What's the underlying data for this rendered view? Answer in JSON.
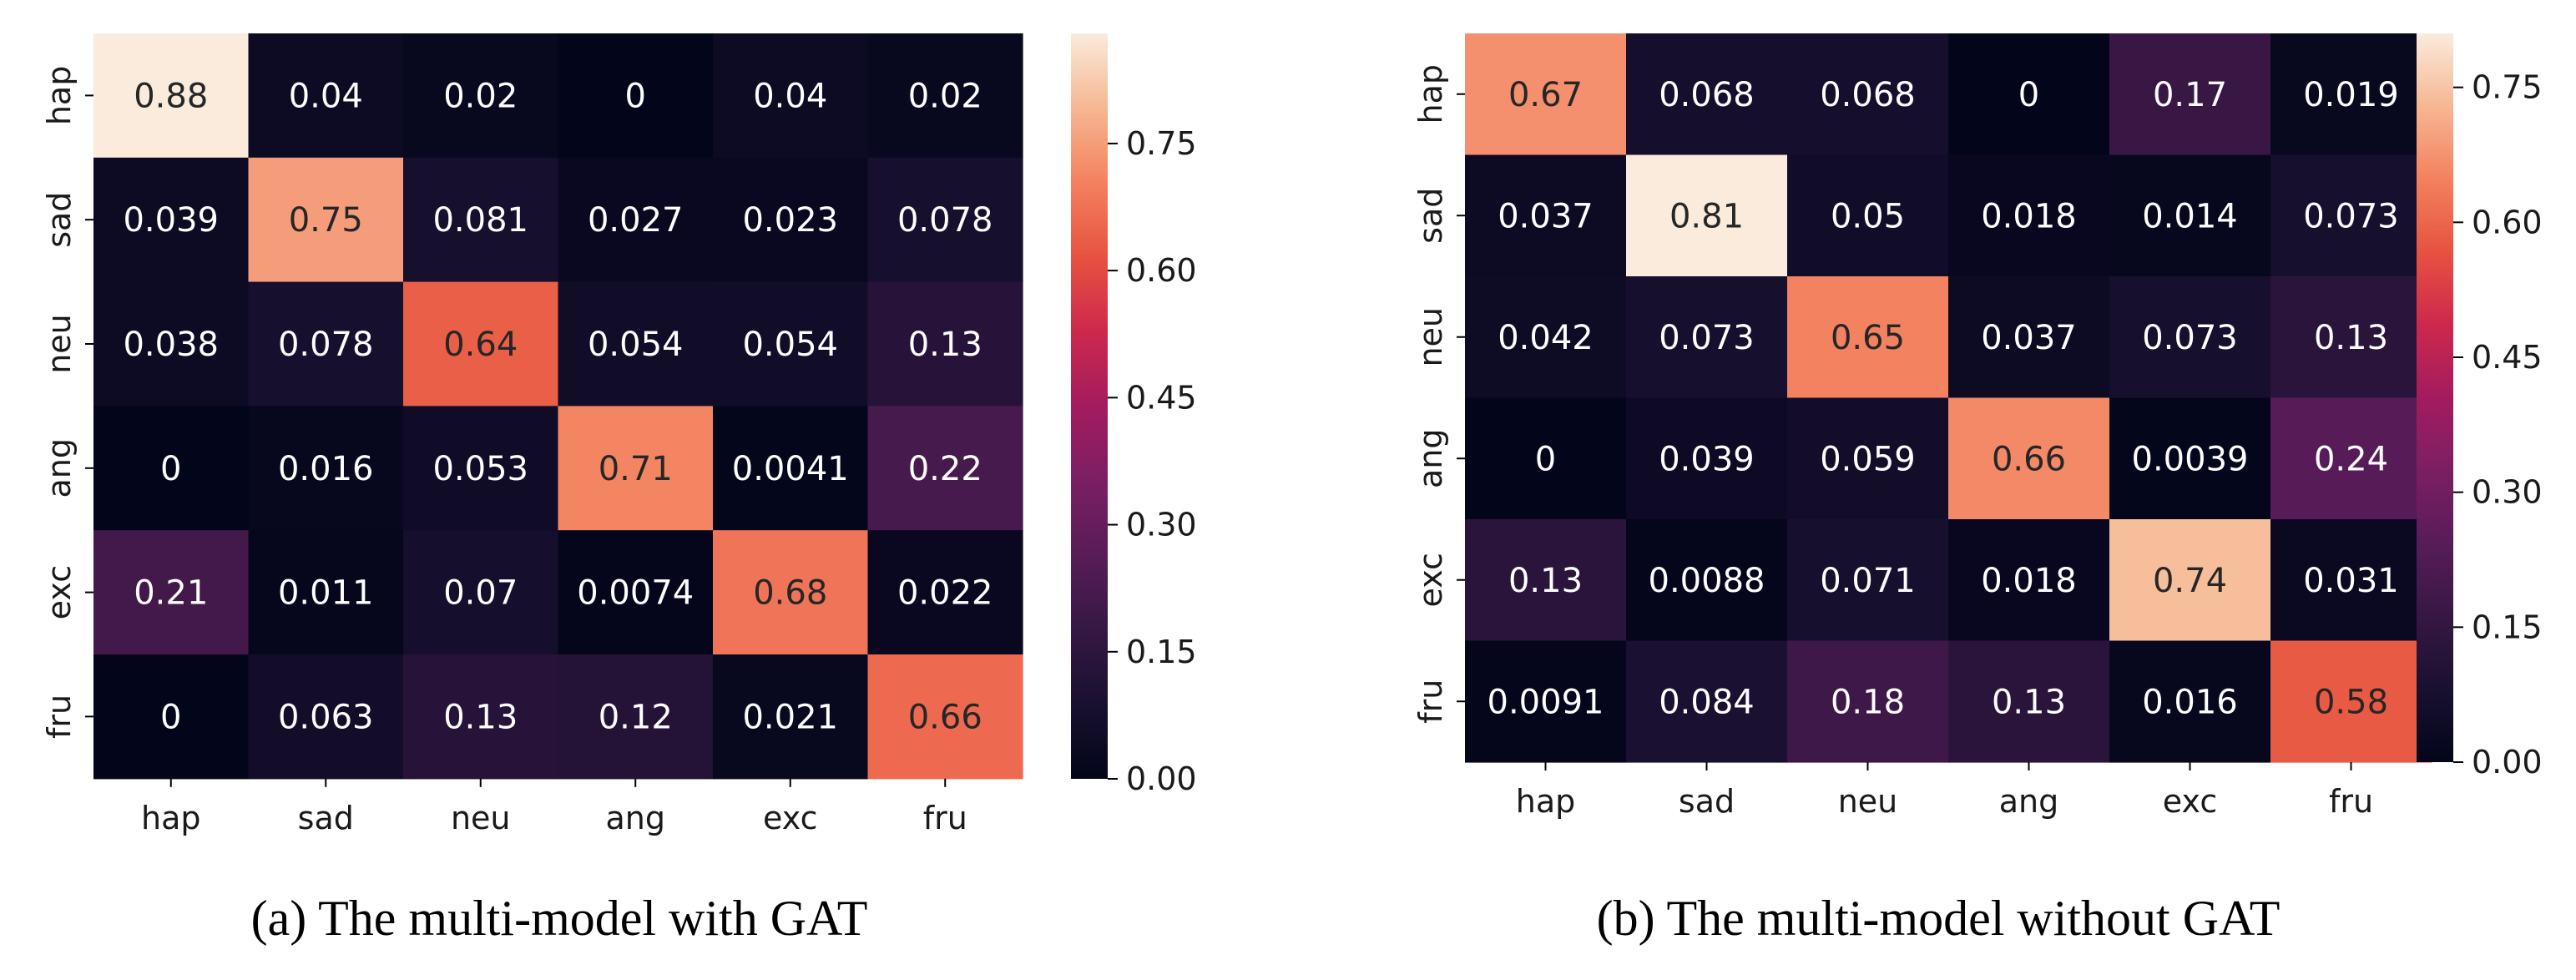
{
  "chart_data": [
    {
      "type": "heatmap",
      "title": "",
      "caption": "(a) The multi-model with GAT",
      "xlabel": "",
      "ylabel": "",
      "x_categories": [
        "hap",
        "sad",
        "neu",
        "ang",
        "exc",
        "fru"
      ],
      "y_categories": [
        "hap",
        "sad",
        "neu",
        "ang",
        "exc",
        "fru"
      ],
      "values": [
        [
          0.88,
          0.04,
          0.02,
          0,
          0.04,
          0.02
        ],
        [
          0.039,
          0.75,
          0.081,
          0.027,
          0.023,
          0.078
        ],
        [
          0.038,
          0.078,
          0.64,
          0.054,
          0.054,
          0.13
        ],
        [
          0,
          0.016,
          0.053,
          0.71,
          0.0041,
          0.22
        ],
        [
          0.21,
          0.011,
          0.07,
          0.0074,
          0.68,
          0.022
        ],
        [
          0,
          0.063,
          0.13,
          0.12,
          0.021,
          0.66
        ]
      ],
      "colorbar": {
        "min": 0,
        "max": 0.88,
        "ticks": [
          "0.00",
          "0.15",
          "0.30",
          "0.45",
          "0.60",
          "0.75"
        ]
      },
      "colormap": "rocket"
    },
    {
      "type": "heatmap",
      "title": "",
      "caption": "(b) The multi-model without GAT",
      "xlabel": "",
      "ylabel": "",
      "x_categories": [
        "hap",
        "sad",
        "neu",
        "ang",
        "exc",
        "fru"
      ],
      "y_categories": [
        "hap",
        "sad",
        "neu",
        "ang",
        "exc",
        "fru"
      ],
      "values": [
        [
          0.67,
          0.068,
          0.068,
          0,
          0.17,
          0.019
        ],
        [
          0.037,
          0.81,
          0.05,
          0.018,
          0.014,
          0.073
        ],
        [
          0.042,
          0.073,
          0.65,
          0.037,
          0.073,
          0.13
        ],
        [
          0,
          0.039,
          0.059,
          0.66,
          0.0039,
          0.24
        ],
        [
          0.13,
          0.0088,
          0.071,
          0.018,
          0.74,
          0.031
        ],
        [
          0.0091,
          0.084,
          0.18,
          0.13,
          0.016,
          0.58
        ]
      ],
      "colorbar": {
        "min": 0,
        "max": 0.81,
        "ticks": [
          "0.00",
          "0.15",
          "0.30",
          "0.45",
          "0.60",
          "0.75"
        ]
      },
      "colormap": "rocket"
    }
  ]
}
